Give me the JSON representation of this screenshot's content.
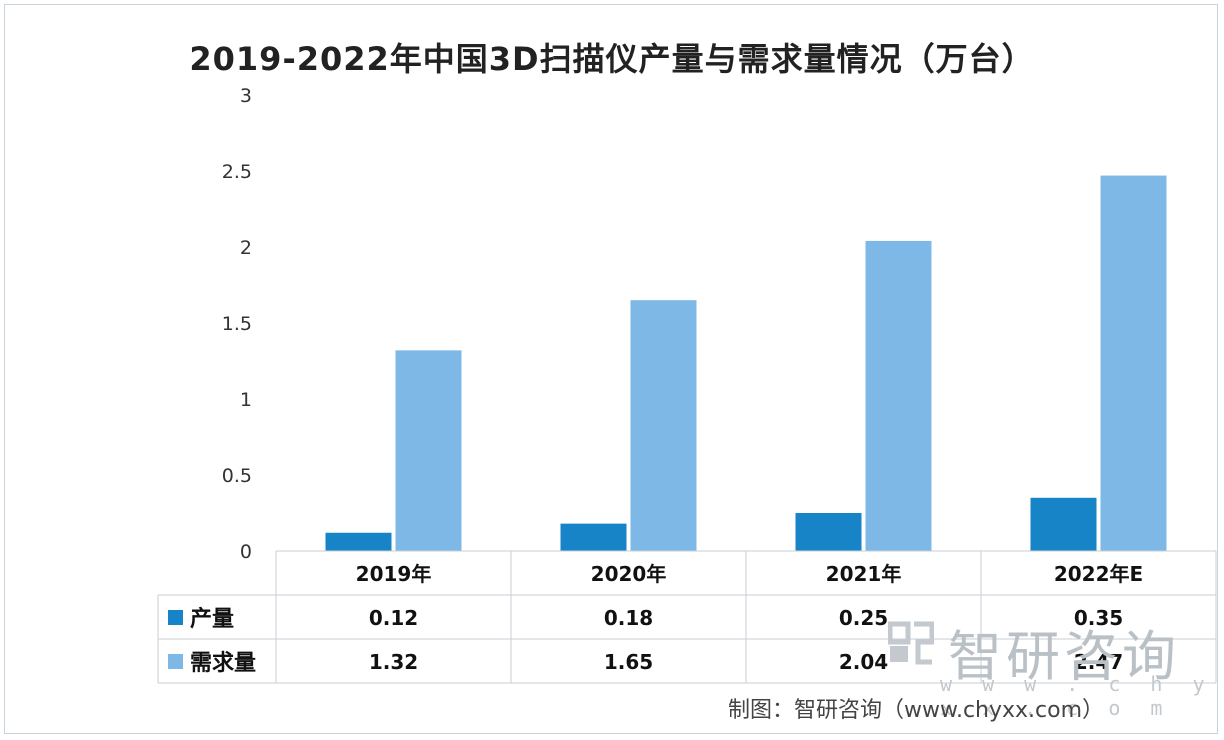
{
  "chart_data": {
    "type": "bar",
    "title": "2019-2022年中国3D扫描仪产量与需求量情况（万台）",
    "categories": [
      "2019年",
      "2020年",
      "2021年",
      "2022年E"
    ],
    "series": [
      {
        "name": "产量",
        "values": [
          0.12,
          0.18,
          0.25,
          0.35
        ],
        "color": "#1784c7",
        "labels": [
          "0.12",
          "0.18",
          "0.25",
          "0.35"
        ]
      },
      {
        "name": "需求量",
        "values": [
          1.32,
          1.65,
          2.04,
          2.47
        ],
        "color": "#7db8e6",
        "labels": [
          "1.32",
          "1.65",
          "2.04",
          "2.47"
        ]
      }
    ],
    "ylim": [
      0,
      3
    ],
    "yticks": [
      "0",
      "0.5",
      "1",
      "1.5",
      "2",
      "2.5",
      "3"
    ],
    "grid": false,
    "legend": "data-table"
  },
  "watermark": {
    "brand": "智研咨询",
    "url": "w w w . c h y x x . c o m"
  },
  "credit": "制图：智研咨询（www.chyxx.com）"
}
